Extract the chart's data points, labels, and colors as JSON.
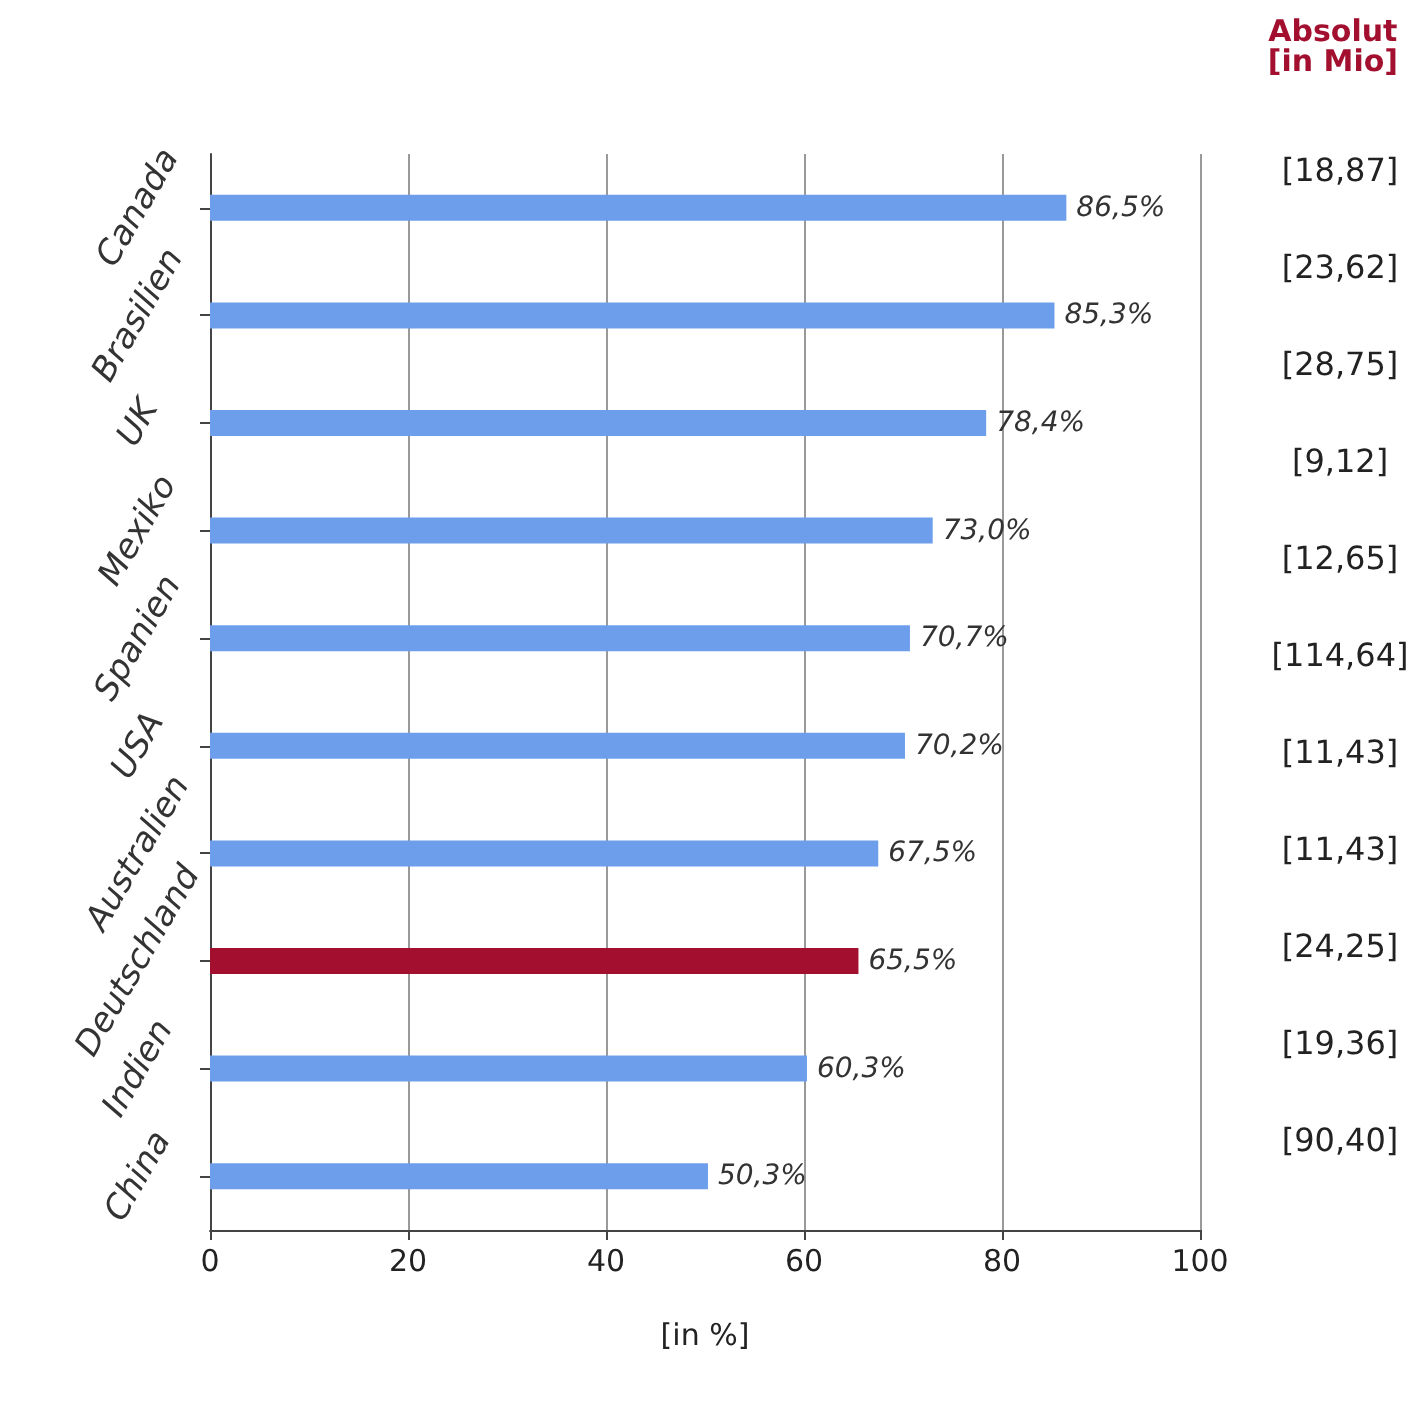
{
  "chart_data": {
    "type": "bar",
    "orientation": "horizontal",
    "xlabel": "[in %]",
    "y2label": "Absolut\n[in Mio]",
    "categories": [
      "Canada",
      "Brasilien",
      "UK",
      "Mexiko",
      "Spanien",
      "USA",
      "Australien",
      "Deutschland",
      "Indien",
      "China"
    ],
    "values": [
      86.5,
      85.3,
      78.4,
      73.0,
      70.7,
      70.2,
      67.5,
      65.5,
      60.3,
      50.3
    ],
    "value_labels": [
      "86,5%",
      "85,3%",
      "78,4%",
      "73,0%",
      "70,7%",
      "70,2%",
      "67,5%",
      "65,5%",
      "60,3%",
      "50,3%"
    ],
    "colors": [
      "#6d9eeb",
      "#6d9eeb",
      "#6d9eeb",
      "#6d9eeb",
      "#6d9eeb",
      "#6d9eeb",
      "#6d9eeb",
      "#a3102f",
      "#6d9eeb",
      "#6d9eeb"
    ],
    "xlim": [
      0,
      100
    ],
    "xticks": [
      0,
      20,
      40,
      60,
      80,
      100
    ],
    "grid": "x",
    "annotations": [
      "[18,87]",
      "[23,62]",
      "[28,75]",
      "[9,12]",
      "[12,65]",
      "[114,64]",
      "[11,43]",
      "[11,43]",
      "[24,25]",
      "[19,36]",
      "[90,40]"
    ]
  }
}
